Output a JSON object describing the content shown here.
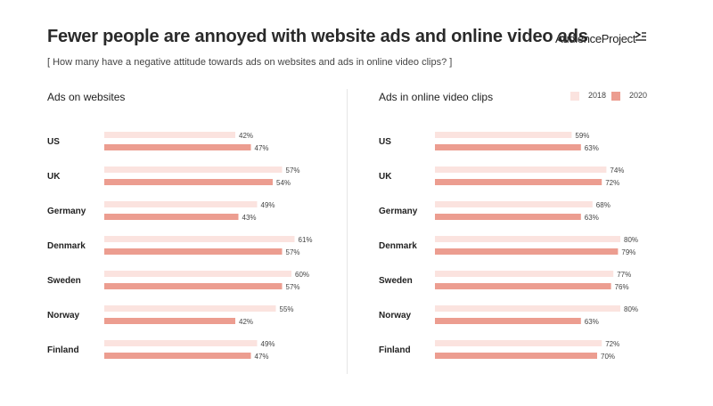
{
  "title": "Fewer people are annoyed with website ads and online video ads",
  "subtitle": "[ How many have a negative attitude towards ads on websites and ads in online video clips? ]",
  "brand": "AudienceProject",
  "legend": [
    {
      "name": "2018",
      "color": "#fbe3df"
    },
    {
      "name": "2020",
      "color": "#ec9d90"
    }
  ],
  "chart_data": [
    {
      "type": "bar",
      "orientation": "horizontal",
      "title": "Ads on websites",
      "categories": [
        "US",
        "UK",
        "Germany",
        "Denmark",
        "Sweden",
        "Norway",
        "Finland"
      ],
      "series": [
        {
          "name": "2018",
          "values": [
            42,
            57,
            49,
            61,
            60,
            55,
            49
          ]
        },
        {
          "name": "2020",
          "values": [
            47,
            54,
            43,
            57,
            57,
            42,
            47
          ]
        }
      ],
      "value_suffix": "%",
      "xlim": [
        0,
        100
      ]
    },
    {
      "type": "bar",
      "orientation": "horizontal",
      "title": "Ads in online video clips",
      "categories": [
        "US",
        "UK",
        "Germany",
        "Denmark",
        "Sweden",
        "Norway",
        "Finland"
      ],
      "series": [
        {
          "name": "2018",
          "values": [
            59,
            74,
            68,
            80,
            77,
            80,
            72
          ]
        },
        {
          "name": "2020",
          "values": [
            63,
            72,
            63,
            79,
            76,
            63,
            70
          ]
        }
      ],
      "value_suffix": "%",
      "xlim": [
        0,
        100
      ]
    }
  ]
}
